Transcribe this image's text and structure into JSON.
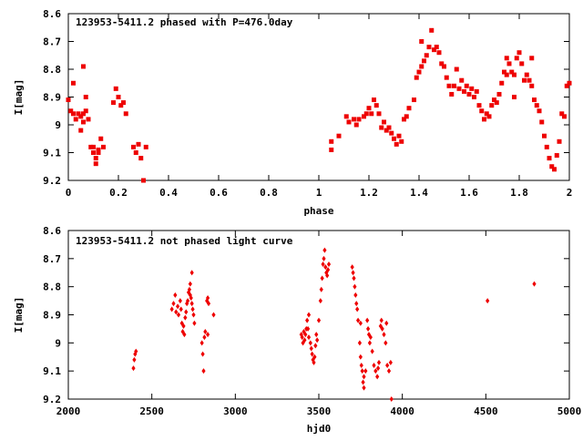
{
  "chart_data": [
    {
      "type": "scatter",
      "title": "123953-5411.2 phased with P=476.0day",
      "xlabel": "phase",
      "ylabel": "I[mag]",
      "xlim": [
        0,
        2
      ],
      "ylim": [
        9.2,
        8.6
      ],
      "y_inverted": true,
      "grid": false,
      "x_ticks": [
        "0",
        "0.2",
        "0.4",
        "0.6",
        "0.8",
        "1",
        "1.2",
        "1.4",
        "1.6",
        "1.8",
        "2"
      ],
      "y_ticks": [
        "8.6",
        "8.7",
        "8.8",
        "8.9",
        "9",
        "9.1",
        "9.2"
      ],
      "marker_color": "#ee0000",
      "points": [
        [
          0.0,
          8.91
        ],
        [
          0.01,
          8.95
        ],
        [
          0.02,
          8.85
        ],
        [
          0.02,
          8.96
        ],
        [
          0.03,
          8.98
        ],
        [
          0.04,
          8.96
        ],
        [
          0.05,
          9.02
        ],
        [
          0.05,
          8.97
        ],
        [
          0.06,
          8.99
        ],
        [
          0.06,
          8.96
        ],
        [
          0.07,
          8.9
        ],
        [
          0.07,
          8.95
        ],
        [
          0.06,
          8.79
        ],
        [
          0.08,
          8.98
        ],
        [
          0.09,
          9.08
        ],
        [
          0.1,
          9.08
        ],
        [
          0.1,
          9.1
        ],
        [
          0.11,
          9.12
        ],
        [
          0.11,
          9.14
        ],
        [
          0.12,
          9.1
        ],
        [
          0.12,
          9.09
        ],
        [
          0.13,
          9.05
        ],
        [
          0.14,
          9.08
        ],
        [
          0.18,
          8.92
        ],
        [
          0.19,
          8.87
        ],
        [
          0.2,
          8.9
        ],
        [
          0.21,
          8.93
        ],
        [
          0.22,
          8.92
        ],
        [
          0.23,
          8.96
        ],
        [
          0.26,
          9.08
        ],
        [
          0.27,
          9.1
        ],
        [
          0.28,
          9.07
        ],
        [
          0.29,
          9.12
        ],
        [
          0.31,
          9.08
        ],
        [
          0.3,
          9.2
        ],
        [
          1.05,
          9.06
        ],
        [
          1.05,
          9.09
        ],
        [
          1.08,
          9.04
        ],
        [
          1.11,
          8.97
        ],
        [
          1.12,
          8.99
        ],
        [
          1.14,
          8.98
        ],
        [
          1.15,
          9.0
        ],
        [
          1.16,
          8.98
        ],
        [
          1.18,
          8.97
        ],
        [
          1.19,
          8.96
        ],
        [
          1.2,
          8.94
        ],
        [
          1.21,
          8.96
        ],
        [
          1.22,
          8.91
        ],
        [
          1.23,
          8.93
        ],
        [
          1.24,
          8.96
        ],
        [
          1.25,
          9.01
        ],
        [
          1.26,
          8.99
        ],
        [
          1.27,
          9.02
        ],
        [
          1.28,
          9.01
        ],
        [
          1.29,
          9.03
        ],
        [
          1.3,
          9.05
        ],
        [
          1.31,
          9.07
        ],
        [
          1.32,
          9.04
        ],
        [
          1.33,
          9.06
        ],
        [
          1.34,
          8.98
        ],
        [
          1.35,
          8.97
        ],
        [
          1.36,
          8.94
        ],
        [
          1.38,
          8.91
        ],
        [
          1.39,
          8.83
        ],
        [
          1.4,
          8.81
        ],
        [
          1.41,
          8.79
        ],
        [
          1.41,
          8.7
        ],
        [
          1.42,
          8.77
        ],
        [
          1.43,
          8.75
        ],
        [
          1.44,
          8.72
        ],
        [
          1.45,
          8.66
        ],
        [
          1.46,
          8.73
        ],
        [
          1.47,
          8.72
        ],
        [
          1.48,
          8.74
        ],
        [
          1.49,
          8.78
        ],
        [
          1.5,
          8.79
        ],
        [
          1.51,
          8.83
        ],
        [
          1.52,
          8.86
        ],
        [
          1.53,
          8.89
        ],
        [
          1.54,
          8.86
        ],
        [
          1.55,
          8.8
        ],
        [
          1.56,
          8.87
        ],
        [
          1.57,
          8.84
        ],
        [
          1.58,
          8.88
        ],
        [
          1.59,
          8.86
        ],
        [
          1.6,
          8.89
        ],
        [
          1.61,
          8.87
        ],
        [
          1.62,
          8.9
        ],
        [
          1.63,
          8.88
        ],
        [
          1.64,
          8.93
        ],
        [
          1.65,
          8.95
        ],
        [
          1.66,
          8.98
        ],
        [
          1.67,
          8.96
        ],
        [
          1.68,
          8.97
        ],
        [
          1.69,
          8.93
        ],
        [
          1.7,
          8.91
        ],
        [
          1.71,
          8.92
        ],
        [
          1.72,
          8.89
        ],
        [
          1.73,
          8.85
        ],
        [
          1.74,
          8.81
        ],
        [
          1.75,
          8.82
        ],
        [
          1.76,
          8.78
        ],
        [
          1.77,
          8.81
        ],
        [
          1.78,
          8.82
        ],
        [
          1.79,
          8.76
        ],
        [
          1.8,
          8.74
        ],
        [
          1.81,
          8.78
        ],
        [
          1.82,
          8.84
        ],
        [
          1.83,
          8.82
        ],
        [
          1.84,
          8.84
        ],
        [
          1.85,
          8.86
        ],
        [
          1.86,
          8.91
        ],
        [
          1.87,
          8.93
        ],
        [
          1.88,
          8.95
        ],
        [
          1.89,
          8.99
        ],
        [
          1.9,
          9.04
        ],
        [
          1.91,
          9.08
        ],
        [
          1.92,
          9.12
        ],
        [
          1.93,
          9.15
        ],
        [
          1.94,
          9.16
        ],
        [
          1.95,
          9.11
        ],
        [
          1.96,
          9.06
        ],
        [
          1.97,
          8.96
        ],
        [
          1.98,
          8.97
        ],
        [
          1.99,
          8.86
        ],
        [
          2.0,
          8.85
        ],
        [
          1.78,
          8.9
        ],
        [
          1.85,
          8.76
        ],
        [
          1.75,
          8.76
        ]
      ]
    },
    {
      "type": "scatter",
      "title": "123953-5411.2 not phased light curve",
      "xlabel": "hjd0",
      "ylabel": "I[mag]",
      "xlim": [
        2000,
        5000
      ],
      "ylim": [
        9.2,
        8.6
      ],
      "y_inverted": true,
      "grid": false,
      "x_ticks": [
        "2000",
        "2500",
        "3000",
        "3500",
        "4000",
        "4500",
        "5000"
      ],
      "y_ticks": [
        "8.6",
        "8.7",
        "8.8",
        "8.9",
        "9",
        "9.1",
        "9.2"
      ],
      "marker_color": "#ee0000",
      "points": [
        [
          2390,
          9.09
        ],
        [
          2395,
          9.06
        ],
        [
          2400,
          9.04
        ],
        [
          2405,
          9.03
        ],
        [
          2620,
          8.88
        ],
        [
          2630,
          8.86
        ],
        [
          2640,
          8.83
        ],
        [
          2645,
          8.89
        ],
        [
          2655,
          8.87
        ],
        [
          2660,
          8.9
        ],
        [
          2670,
          8.85
        ],
        [
          2675,
          8.88
        ],
        [
          2680,
          8.93
        ],
        [
          2685,
          8.96
        ],
        [
          2690,
          8.94
        ],
        [
          2695,
          8.97
        ],
        [
          2700,
          8.91
        ],
        [
          2705,
          8.89
        ],
        [
          2710,
          8.86
        ],
        [
          2715,
          8.85
        ],
        [
          2720,
          8.82
        ],
        [
          2725,
          8.81
        ],
        [
          2730,
          8.83
        ],
        [
          2735,
          8.84
        ],
        [
          2740,
          8.86
        ],
        [
          2745,
          8.88
        ],
        [
          2750,
          8.9
        ],
        [
          2755,
          8.93
        ],
        [
          2740,
          8.75
        ],
        [
          2730,
          8.79
        ],
        [
          2800,
          9.0
        ],
        [
          2805,
          9.04
        ],
        [
          2810,
          9.1
        ],
        [
          2815,
          8.98
        ],
        [
          2820,
          8.96
        ],
        [
          2830,
          8.85
        ],
        [
          2835,
          8.84
        ],
        [
          2840,
          8.86
        ],
        [
          2870,
          8.9
        ],
        [
          2835,
          8.97
        ],
        [
          3395,
          8.97
        ],
        [
          3400,
          8.98
        ],
        [
          3405,
          9.0
        ],
        [
          3410,
          8.96
        ],
        [
          3415,
          8.99
        ],
        [
          3420,
          8.97
        ],
        [
          3430,
          8.92
        ],
        [
          3435,
          8.95
        ],
        [
          3440,
          8.98
        ],
        [
          3450,
          9.0
        ],
        [
          3455,
          9.02
        ],
        [
          3460,
          9.04
        ],
        [
          3465,
          9.06
        ],
        [
          3470,
          9.07
        ],
        [
          3475,
          9.05
        ],
        [
          3480,
          9.01
        ],
        [
          3485,
          8.97
        ],
        [
          3490,
          8.99
        ],
        [
          3500,
          8.92
        ],
        [
          3510,
          8.85
        ],
        [
          3515,
          8.81
        ],
        [
          3520,
          8.77
        ],
        [
          3525,
          8.72
        ],
        [
          3530,
          8.7
        ],
        [
          3535,
          8.67
        ],
        [
          3540,
          8.73
        ],
        [
          3545,
          8.75
        ],
        [
          3550,
          8.76
        ],
        [
          3555,
          8.74
        ],
        [
          3560,
          8.72
        ],
        [
          3440,
          8.9
        ],
        [
          3425,
          8.95
        ],
        [
          3700,
          8.73
        ],
        [
          3705,
          8.75
        ],
        [
          3710,
          8.77
        ],
        [
          3715,
          8.8
        ],
        [
          3720,
          8.83
        ],
        [
          3725,
          8.86
        ],
        [
          3730,
          8.88
        ],
        [
          3735,
          8.92
        ],
        [
          3745,
          9.0
        ],
        [
          3750,
          9.05
        ],
        [
          3755,
          9.08
        ],
        [
          3760,
          9.1
        ],
        [
          3765,
          9.14
        ],
        [
          3770,
          9.16
        ],
        [
          3780,
          9.1
        ],
        [
          3790,
          8.92
        ],
        [
          3795,
          8.95
        ],
        [
          3800,
          8.97
        ],
        [
          3805,
          9.0
        ],
        [
          3810,
          8.98
        ],
        [
          3820,
          9.03
        ],
        [
          3830,
          9.08
        ],
        [
          3840,
          9.1
        ],
        [
          3850,
          9.12
        ],
        [
          3855,
          9.09
        ],
        [
          3860,
          9.07
        ],
        [
          3870,
          8.94
        ],
        [
          3875,
          8.92
        ],
        [
          3880,
          8.95
        ],
        [
          3890,
          8.97
        ],
        [
          3900,
          9.0
        ],
        [
          3905,
          8.93
        ],
        [
          3910,
          9.08
        ],
        [
          3920,
          9.1
        ],
        [
          3930,
          9.07
        ],
        [
          3935,
          9.2
        ],
        [
          3750,
          8.93
        ],
        [
          3770,
          9.12
        ],
        [
          4510,
          8.85
        ],
        [
          4790,
          8.79
        ]
      ]
    }
  ]
}
